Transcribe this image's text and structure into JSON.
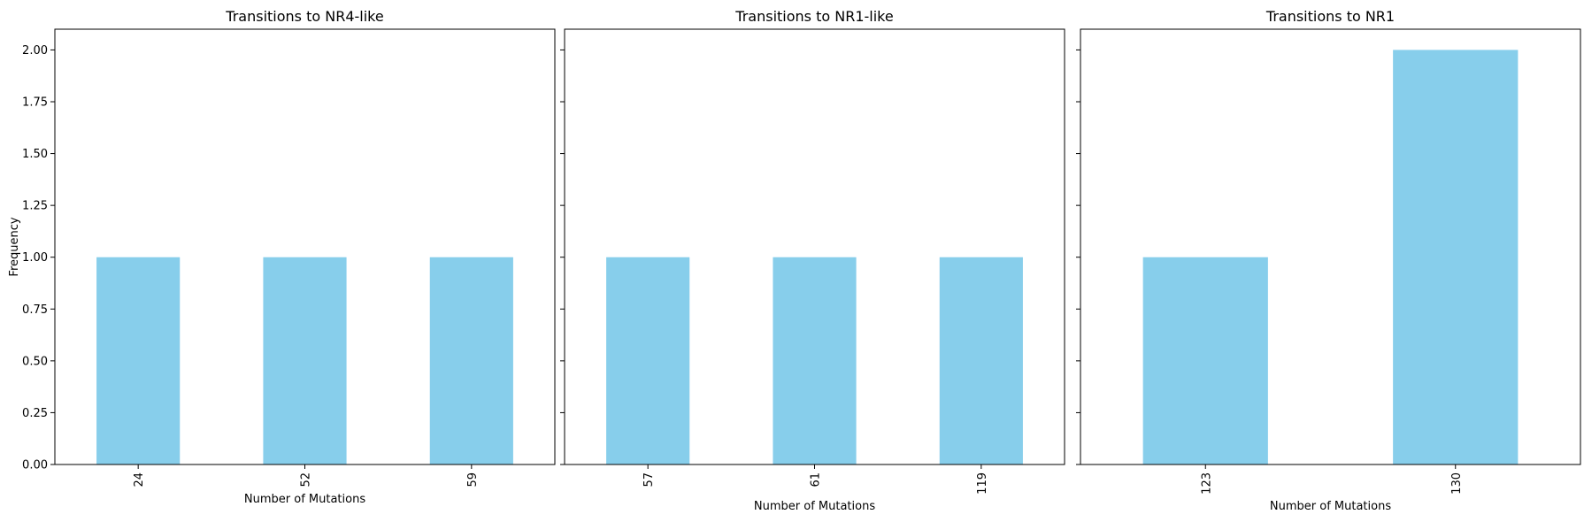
{
  "chart_data": [
    {
      "type": "bar",
      "title": "Transitions to NR4-like",
      "xlabel": "Number of Mutations",
      "ylabel": "Frequency",
      "categories": [
        "24",
        "52",
        "59"
      ],
      "values": [
        1,
        1,
        1
      ],
      "ylim": [
        0,
        2.1
      ],
      "yticks": [
        "0.00",
        "0.25",
        "0.50",
        "0.75",
        "1.00",
        "1.25",
        "1.50",
        "1.75",
        "2.00"
      ],
      "bar_color": "#87ceeb",
      "grid": false
    },
    {
      "type": "bar",
      "title": "Transitions to NR1-like",
      "xlabel": "Number of Mutations",
      "ylabel": "",
      "categories": [
        "57",
        "61",
        "119"
      ],
      "values": [
        1,
        1,
        1
      ],
      "ylim": [
        0,
        2.1
      ],
      "bar_color": "#87ceeb",
      "grid": false
    },
    {
      "type": "bar",
      "title": "Transitions to NR1",
      "xlabel": "Number of Mutations",
      "ylabel": "",
      "categories": [
        "123",
        "130"
      ],
      "values": [
        1,
        2
      ],
      "ylim": [
        0,
        2.1
      ],
      "bar_color": "#87ceeb",
      "grid": false
    }
  ]
}
